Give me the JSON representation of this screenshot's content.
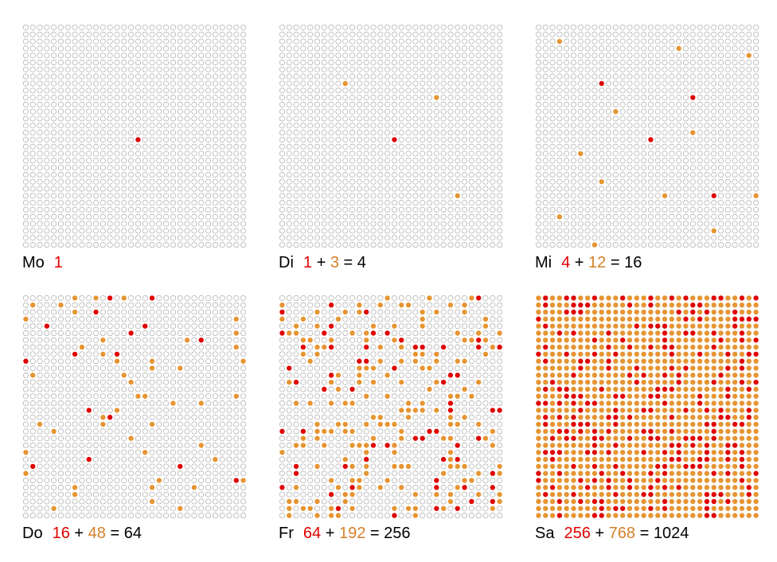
{
  "colors": {
    "empty_stroke": "#b3b3b3",
    "red": "#e00000",
    "orange": "#e69532",
    "text": "#000000"
  },
  "grid": {
    "rows": 32,
    "cols": 32
  },
  "panels": [
    {
      "day": "Mo",
      "red": "1",
      "plus": "",
      "orange": "",
      "eq": "",
      "total": ""
    },
    {
      "day": "Di",
      "red": "1",
      "plus": "+",
      "orange": "3",
      "eq": "=",
      "total": "4"
    },
    {
      "day": "Mi",
      "red": "4",
      "plus": "+",
      "orange": "12",
      "eq": "=",
      "total": "16"
    },
    {
      "day": "Do",
      "red": "16",
      "plus": "+",
      "orange": "48",
      "eq": "=",
      "total": "64"
    },
    {
      "day": "Fr",
      "red": "64",
      "plus": "+",
      "orange": "192",
      "eq": "=",
      "total": "256"
    },
    {
      "day": "Sa",
      "red": "256",
      "plus": "+",
      "orange": "768",
      "eq": "=",
      "total": "1024"
    }
  ],
  "chart_data": {
    "type": "dot-grid",
    "grid_size": [
      32,
      32
    ],
    "panels": [
      {
        "day": "Mo",
        "red_count": 1,
        "orange_count": 0,
        "total": 1,
        "red_cells": [
          [
            16,
            16
          ]
        ],
        "orange_cells": []
      },
      {
        "day": "Di",
        "red_count": 1,
        "orange_count": 3,
        "total": 4,
        "red_cells": [
          [
            16,
            16
          ]
        ],
        "orange_cells": [
          [
            8,
            9
          ],
          [
            10,
            22
          ],
          [
            24,
            25
          ]
        ]
      },
      {
        "day": "Mi",
        "red_count": 4,
        "orange_count": 12,
        "total": 16,
        "red_cells": [
          [
            8,
            9
          ],
          [
            10,
            22
          ],
          [
            16,
            16
          ],
          [
            24,
            25
          ]
        ],
        "orange_cells": [
          [
            2,
            3
          ],
          [
            3,
            20
          ],
          [
            4,
            30
          ],
          [
            12,
            11
          ],
          [
            15,
            22
          ],
          [
            18,
            6
          ],
          [
            22,
            9
          ],
          [
            24,
            18
          ],
          [
            24,
            31
          ],
          [
            27,
            3
          ],
          [
            29,
            25
          ],
          [
            31,
            8
          ]
        ]
      },
      {
        "day": "Do",
        "red_count": 16,
        "orange_count": 48,
        "total": 64
      },
      {
        "day": "Fr",
        "red_count": 64,
        "orange_count": 192,
        "total": 256
      },
      {
        "day": "Sa",
        "red_count": 256,
        "orange_count": 768,
        "total": 1024
      }
    ]
  }
}
